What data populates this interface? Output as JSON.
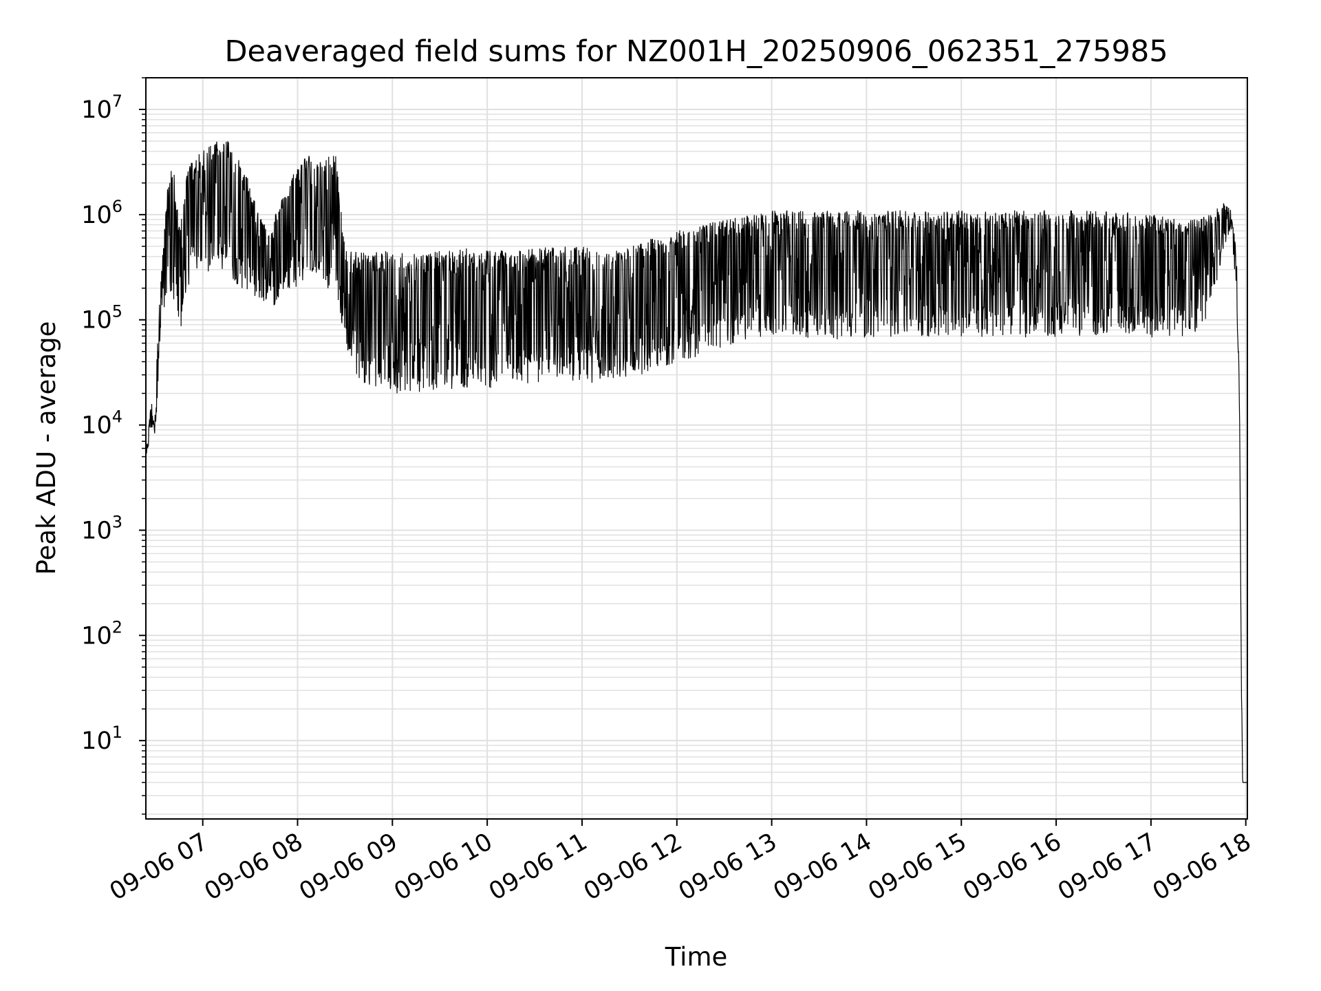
{
  "chart_data": {
    "type": "line",
    "title": "Deaveraged field sums for NZ001H_20250906_062351_275985",
    "xlabel": "Time",
    "ylabel": "Peak ADU - average",
    "yscale": "log",
    "ylim": [
      1.8,
      20000000
    ],
    "xlim": [
      "09-06 06:24",
      "09-06 18:01"
    ],
    "grid": true,
    "line_color": "#000000",
    "grid_color": "#e0e0e0",
    "x_ticks": [
      "09-06 07",
      "09-06 08",
      "09-06 09",
      "09-06 10",
      "09-06 11",
      "09-06 12",
      "09-06 13",
      "09-06 14",
      "09-06 15",
      "09-06 16",
      "09-06 17",
      "09-06 18"
    ],
    "y_ticks": [
      {
        "base": "10",
        "exp": "1"
      },
      {
        "base": "10",
        "exp": "2"
      },
      {
        "base": "10",
        "exp": "3"
      },
      {
        "base": "10",
        "exp": "4"
      },
      {
        "base": "10",
        "exp": "5"
      },
      {
        "base": "10",
        "exp": "6"
      },
      {
        "base": "10",
        "exp": "7"
      }
    ],
    "series": [
      {
        "x": [
          "09-06 06:24",
          "09-06 06:27",
          "09-06 06:30",
          "09-06 06:33",
          "09-06 06:36",
          "09-06 06:38",
          "09-06 06:40",
          "09-06 06:42",
          "09-06 06:45",
          "09-06 06:48",
          "09-06 06:51",
          "09-06 06:55",
          "09-06 07:00",
          "09-06 07:06",
          "09-06 07:12",
          "09-06 07:18",
          "09-06 07:24",
          "09-06 07:30",
          "09-06 07:36",
          "09-06 07:42",
          "09-06 07:48",
          "09-06 07:54",
          "09-06 08:00",
          "09-06 08:06",
          "09-06 08:12",
          "09-06 08:18",
          "09-06 08:24",
          "09-06 08:30",
          "09-06 08:36",
          "09-06 08:42",
          "09-06 08:50",
          "09-06 09:00",
          "09-06 09:15",
          "09-06 09:30",
          "09-06 09:45",
          "09-06 10:00",
          "09-06 10:15",
          "09-06 10:30",
          "09-06 10:45",
          "09-06 11:00",
          "09-06 11:15",
          "09-06 11:30",
          "09-06 11:45",
          "09-06 12:00",
          "09-06 12:15",
          "09-06 12:30",
          "09-06 12:45",
          "09-06 13:00",
          "09-06 13:30",
          "09-06 14:00",
          "09-06 14:30",
          "09-06 15:00",
          "09-06 15:30",
          "09-06 16:00",
          "09-06 16:30",
          "09-06 17:00",
          "09-06 17:30",
          "09-06 17:40",
          "09-06 17:45",
          "09-06 17:50",
          "09-06 17:54",
          "09-06 17:56",
          "09-06 17:57",
          "09-06 17:58",
          "09-06 18:00",
          "09-06 18:01"
        ],
        "hi": [
          5000,
          15000,
          25000,
          200000,
          800000,
          2000000,
          3000000,
          2500000,
          800000,
          1500000,
          3000000,
          3500000,
          4000000,
          5000000,
          6000000,
          5000000,
          3000000,
          2000000,
          1000000,
          800000,
          1200000,
          2000000,
          3000000,
          4000000,
          3000000,
          3500000,
          4000000,
          500000,
          450000,
          450000,
          450000,
          450000,
          450000,
          450000,
          480000,
          480000,
          480000,
          480000,
          500000,
          500000,
          450000,
          500000,
          600000,
          700000,
          800000,
          900000,
          1000000,
          1100000,
          1100000,
          1100000,
          1100000,
          1100000,
          1100000,
          1100000,
          1100000,
          1000000,
          900000,
          1100000,
          1300000,
          1200000,
          500000,
          20000,
          100,
          4,
          4,
          4
        ],
        "lo": [
          4000,
          9000,
          8000,
          60000,
          100000,
          200000,
          150000,
          100000,
          50000,
          150000,
          200000,
          300000,
          250000,
          300000,
          300000,
          250000,
          200000,
          180000,
          150000,
          120000,
          150000,
          200000,
          200000,
          250000,
          250000,
          200000,
          150000,
          60000,
          30000,
          25000,
          22000,
          20000,
          20000,
          22000,
          22000,
          22000,
          24000,
          25000,
          28000,
          25000,
          25000,
          28000,
          32000,
          40000,
          45000,
          55000,
          65000,
          70000,
          65000,
          65000,
          68000,
          68000,
          68000,
          68000,
          68000,
          68000,
          70000,
          150000,
          400000,
          700000,
          200000,
          15000,
          50,
          4,
          4,
          4
        ]
      }
    ]
  }
}
